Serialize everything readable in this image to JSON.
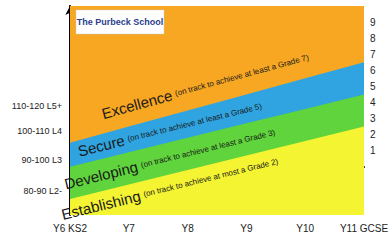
{
  "chart_data": {
    "type": "area",
    "logo": "The Purbeck School",
    "categories": [
      "Y6 KS2",
      "Y7",
      "Y8",
      "Y9",
      "Y10",
      "Y11 GCSE"
    ],
    "series": [
      {
        "name": "Excellence",
        "note": "(on track to achieve at least a Grade 7)",
        "color": "#f8a723",
        "values": [
          10,
          10,
          10,
          10,
          10,
          10
        ]
      },
      {
        "name": "Secure",
        "note": "(on track to achieve at least a Grade 5)",
        "color": "#2fa4e0",
        "values": [
          1.5,
          2.5,
          3.5,
          4.5,
          5.5,
          6.5
        ]
      },
      {
        "name": "Developing",
        "note": "(on track to achieve at least a Grade 3)",
        "color": "#5fd43c",
        "values": [
          0,
          0.9,
          1.8,
          2.7,
          3.6,
          4.5
        ]
      },
      {
        "name": "Establishing",
        "note": "(on track to achieve at most a Grade 2)",
        "color": "#f4f432",
        "values": [
          -2,
          -1.1,
          -0.2,
          0.7,
          1.6,
          2.5
        ]
      }
    ],
    "ylim": [
      -3,
      10
    ],
    "yticks": [
      {
        "value": -1.5,
        "label": "80-90 L2-"
      },
      {
        "value": 0.4,
        "label": "90-100 L3"
      },
      {
        "value": 2.2,
        "label": "100-110 L4"
      },
      {
        "value": 3.8,
        "label": "110-120 L5+"
      }
    ],
    "y2lim": [
      -3,
      10
    ],
    "y2ticks": [
      1,
      2,
      3,
      4,
      5,
      6,
      7,
      8,
      9
    ],
    "grid": false
  }
}
